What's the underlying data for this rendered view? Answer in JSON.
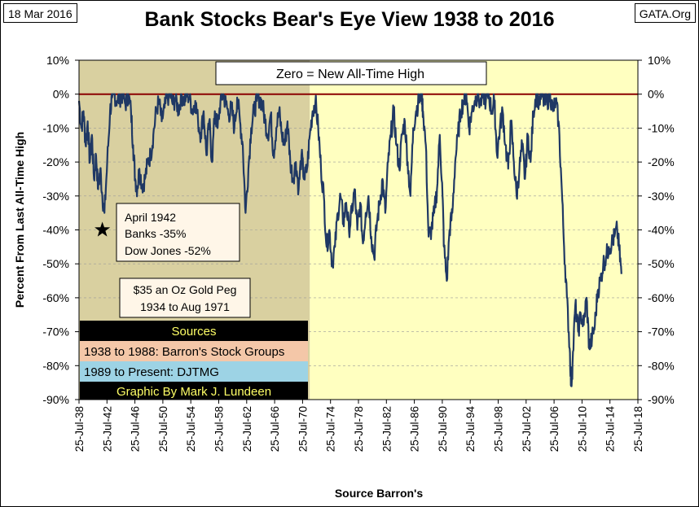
{
  "header": {
    "date": "18 Mar 2016",
    "site": "GATA.Org",
    "title": "Bank Stocks Bear's Eye View 1938 to 2016"
  },
  "colors": {
    "line": "#1f3864",
    "zero_line": "#8b0000",
    "gold_peg_bg": "#d9d0a0",
    "post_peg_bg": "#ffffc0",
    "sources_bg": "#000000",
    "sources_text": "#ffff66",
    "barrons_bg": "#f4c7a8",
    "djtmg_bg": "#9dd3e5"
  },
  "annotations": {
    "zero_label": "Zero = New All-Time High",
    "april_1942": [
      "April 1942",
      "Banks -35%",
      "Dow Jones -52%"
    ],
    "gold_peg": [
      "$35 an Oz Gold Peg",
      "1934 to Aug 1971"
    ],
    "sources_title": "Sources",
    "source_1": "1938 to 1988: Barron's Stock Groups",
    "source_2": "1989 to Present: DJTMG",
    "credit": "Graphic By Mark J. Lundeen"
  },
  "chart_data": {
    "type": "line",
    "title": "Bank Stocks Bear's Eye View 1938 to 2016",
    "xlabel": "Source Barron's",
    "ylabel": "Percent From Last All-Time High",
    "ylim": [
      -90,
      10
    ],
    "yticks": [
      "10%",
      "0%",
      "-10%",
      "-20%",
      "-30%",
      "-40%",
      "-50%",
      "-60%",
      "-70%",
      "-80%",
      "-90%"
    ],
    "xlim": [
      1938.56,
      2018.56
    ],
    "xticks": [
      "25-Jul-38",
      "25-Jul-42",
      "25-Jul-46",
      "25-Jul-50",
      "25-Jul-54",
      "25-Jul-58",
      "25-Jul-62",
      "25-Jul-66",
      "25-Jul-70",
      "25-Jul-74",
      "25-Jul-78",
      "25-Jul-82",
      "25-Jul-86",
      "25-Jul-90",
      "25-Jul-94",
      "25-Jul-98",
      "25-Jul-02",
      "25-Jul-06",
      "25-Jul-10",
      "25-Jul-14",
      "25-Jul-18"
    ],
    "gold_peg_end_year": 1971.6,
    "marker": {
      "x": 1941.9,
      "y": -40,
      "label": "April 1942"
    },
    "series": [
      {
        "name": "Bank Stocks BEV",
        "x": [
          1938.56,
          1938.9,
          1939.2,
          1939.5,
          1939.8,
          1940.1,
          1940.4,
          1940.7,
          1941.0,
          1941.3,
          1941.6,
          1941.9,
          1942.2,
          1942.6,
          1943.0,
          1943.3,
          1943.6,
          1944.0,
          1944.4,
          1944.8,
          1945.2,
          1945.6,
          1946.0,
          1946.3,
          1946.6,
          1946.9,
          1947.2,
          1947.6,
          1948.0,
          1948.4,
          1948.8,
          1949.2,
          1949.6,
          1950.0,
          1950.4,
          1950.8,
          1951.2,
          1951.6,
          1952.0,
          1952.4,
          1952.8,
          1953.2,
          1953.6,
          1954.0,
          1954.4,
          1954.8,
          1955.2,
          1955.6,
          1956.0,
          1956.4,
          1956.8,
          1957.2,
          1957.6,
          1958.0,
          1958.4,
          1958.8,
          1959.2,
          1959.6,
          1960.0,
          1960.4,
          1960.8,
          1961.2,
          1961.6,
          1962.0,
          1962.4,
          1962.8,
          1963.2,
          1963.6,
          1964.0,
          1964.4,
          1964.8,
          1965.2,
          1965.6,
          1966.0,
          1966.4,
          1966.8,
          1967.2,
          1967.6,
          1968.0,
          1968.4,
          1968.8,
          1969.2,
          1969.6,
          1970.0,
          1970.4,
          1970.8,
          1971.2,
          1971.6,
          1972.0,
          1972.4,
          1972.8,
          1973.2,
          1973.6,
          1974.0,
          1974.4,
          1974.8,
          1975.2,
          1975.6,
          1976.0,
          1976.4,
          1976.8,
          1977.2,
          1977.6,
          1978.0,
          1978.4,
          1978.8,
          1979.2,
          1979.6,
          1980.0,
          1980.4,
          1980.8,
          1981.2,
          1981.6,
          1982.0,
          1982.4,
          1982.8,
          1983.2,
          1983.6,
          1984.0,
          1984.4,
          1984.8,
          1985.2,
          1985.6,
          1986.0,
          1986.4,
          1986.8,
          1987.2,
          1987.6,
          1987.8,
          1988.2,
          1988.6,
          1989.0,
          1989.4,
          1989.8,
          1990.2,
          1990.6,
          1990.8,
          1991.2,
          1991.6,
          1992.0,
          1992.4,
          1992.8,
          1993.2,
          1993.6,
          1994.0,
          1994.4,
          1994.8,
          1995.2,
          1995.6,
          1996.0,
          1996.4,
          1996.8,
          1997.2,
          1997.6,
          1998.0,
          1998.4,
          1998.8,
          1999.2,
          1999.6,
          2000.0,
          2000.4,
          2000.8,
          2001.2,
          2001.6,
          2002.0,
          2002.4,
          2002.8,
          2003.2,
          2003.6,
          2004.0,
          2004.4,
          2004.8,
          2005.2,
          2005.6,
          2006.0,
          2006.4,
          2006.8,
          2007.2,
          2007.6,
          2008.0,
          2008.4,
          2008.8,
          2009.0,
          2009.2,
          2009.6,
          2010.0,
          2010.4,
          2010.8,
          2011.2,
          2011.6,
          2012.0,
          2012.4,
          2012.8,
          2013.2,
          2013.6,
          2014.0,
          2014.4,
          2014.8,
          2015.2,
          2015.6,
          2015.9,
          2016.2
        ],
        "values": [
          -2,
          -10,
          -5,
          -15,
          -8,
          -20,
          -12,
          -25,
          -18,
          -28,
          -22,
          -30,
          -35,
          -20,
          -5,
          -1,
          0,
          -2,
          -1,
          0,
          -3,
          0,
          -5,
          -15,
          -25,
          -28,
          -22,
          -27,
          -25,
          -20,
          -18,
          -12,
          -5,
          -2,
          -8,
          -4,
          -1,
          0,
          -3,
          -1,
          -5,
          0,
          -2,
          0,
          -1,
          -5,
          -2,
          -8,
          -12,
          -5,
          -18,
          -8,
          -20,
          -5,
          -10,
          -2,
          0,
          -3,
          -6,
          -4,
          -10,
          -1,
          -8,
          -15,
          -35,
          -22,
          -10,
          -5,
          -2,
          -1,
          -3,
          -8,
          -12,
          -6,
          -18,
          -10,
          -5,
          -12,
          -15,
          -8,
          -20,
          -25,
          -20,
          -28,
          -18,
          -25,
          -22,
          -12,
          -5,
          -2,
          -10,
          -22,
          -30,
          -45,
          -40,
          -50,
          -45,
          -35,
          -30,
          -38,
          -32,
          -40,
          -35,
          -28,
          -40,
          -32,
          -44,
          -35,
          -30,
          -42,
          -48,
          -38,
          -32,
          -25,
          -35,
          -20,
          -12,
          -5,
          -15,
          -22,
          -12,
          -8,
          -20,
          -30,
          -10,
          -5,
          -2,
          0,
          -5,
          -15,
          -42,
          -40,
          -35,
          -28,
          -12,
          -30,
          -45,
          -55,
          -40,
          -35,
          -20,
          -12,
          -5,
          -2,
          0,
          -10,
          -5,
          -2,
          0,
          -3,
          0,
          -2,
          0,
          -5,
          -2,
          -18,
          -10,
          -5,
          -15,
          -22,
          -8,
          -20,
          -30,
          -22,
          -15,
          -25,
          -12,
          -20,
          -5,
          0,
          -2,
          0,
          -3,
          -2,
          0,
          -5,
          -2,
          -8,
          -25,
          -45,
          -60,
          -75,
          -86,
          -80,
          -62,
          -70,
          -65,
          -68,
          -60,
          -75,
          -72,
          -68,
          -58,
          -55,
          -50,
          -48,
          -45,
          -44,
          -42,
          -40,
          -46,
          -53
        ]
      }
    ]
  }
}
